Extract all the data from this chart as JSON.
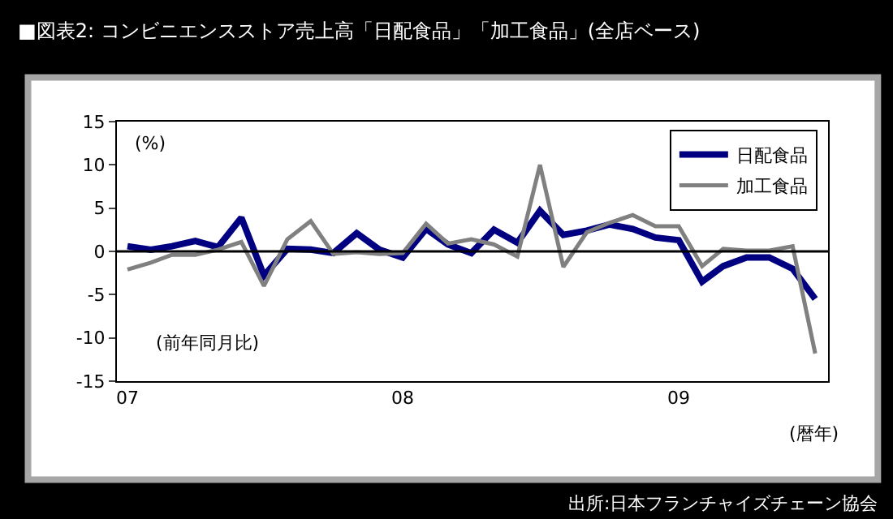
{
  "chart_data": {
    "type": "line",
    "title": "■図表2: コンビニエンスストア売上高「日配食品」「加工食品」(全店ベース)",
    "x": [
      "2007-01",
      "2007-02",
      "2007-03",
      "2007-04",
      "2007-05",
      "2007-06",
      "2007-07",
      "2007-08",
      "2007-09",
      "2007-10",
      "2007-11",
      "2007-12",
      "2008-01",
      "2008-02",
      "2008-03",
      "2008-04",
      "2008-05",
      "2008-06",
      "2008-07",
      "2008-08",
      "2008-09",
      "2008-10",
      "2008-11",
      "2008-12",
      "2009-01",
      "2009-02",
      "2009-03",
      "2009-04",
      "2009-05",
      "2009-06",
      "2009-07"
    ],
    "series": [
      {
        "name": "日配食品",
        "color": "#000080",
        "values": [
          0.6,
          0.2,
          0.6,
          1.2,
          0.5,
          3.9,
          -2.8,
          0.3,
          0.2,
          -0.2,
          2.1,
          0.2,
          -0.7,
          2.6,
          0.8,
          -0.2,
          2.5,
          1.0,
          4.7,
          1.9,
          2.4,
          3.1,
          2.6,
          1.6,
          1.3,
          -3.5,
          -1.7,
          -0.7,
          -0.7,
          -2.0,
          -5.5
        ]
      },
      {
        "name": "加工食品",
        "color": "#808080",
        "values": [
          -2.1,
          -1.3,
          -0.4,
          -0.4,
          0.2,
          1.1,
          -4.0,
          1.4,
          3.5,
          -0.3,
          -0.1,
          -0.3,
          -0.2,
          3.2,
          0.9,
          1.4,
          0.8,
          -0.6,
          10.0,
          -1.8,
          2.2,
          3.3,
          4.2,
          2.9,
          2.9,
          -1.7,
          0.3,
          0.1,
          0.1,
          0.6,
          -11.8
        ]
      }
    ],
    "xlim": [
      "2006-12-18",
      "2009-07-18"
    ],
    "xticks": [
      {
        "value": "2007-01",
        "label": "07"
      },
      {
        "value": "2008-01",
        "label": "08"
      },
      {
        "value": "2009-01",
        "label": "09"
      }
    ],
    "ylim": [
      -15,
      15
    ],
    "yticks": [
      -15,
      -10,
      -5,
      0,
      5,
      10,
      15
    ],
    "ref_lines": [
      {
        "axis": "y",
        "value": 0,
        "color": "#000000"
      }
    ],
    "annotations": [
      "(%)",
      "(前年同月比)",
      "(暦年)",
      "出所:日本フランチャイズチェーン協会"
    ],
    "legend": "top right",
    "marker": "none",
    "line_style": "solid"
  }
}
